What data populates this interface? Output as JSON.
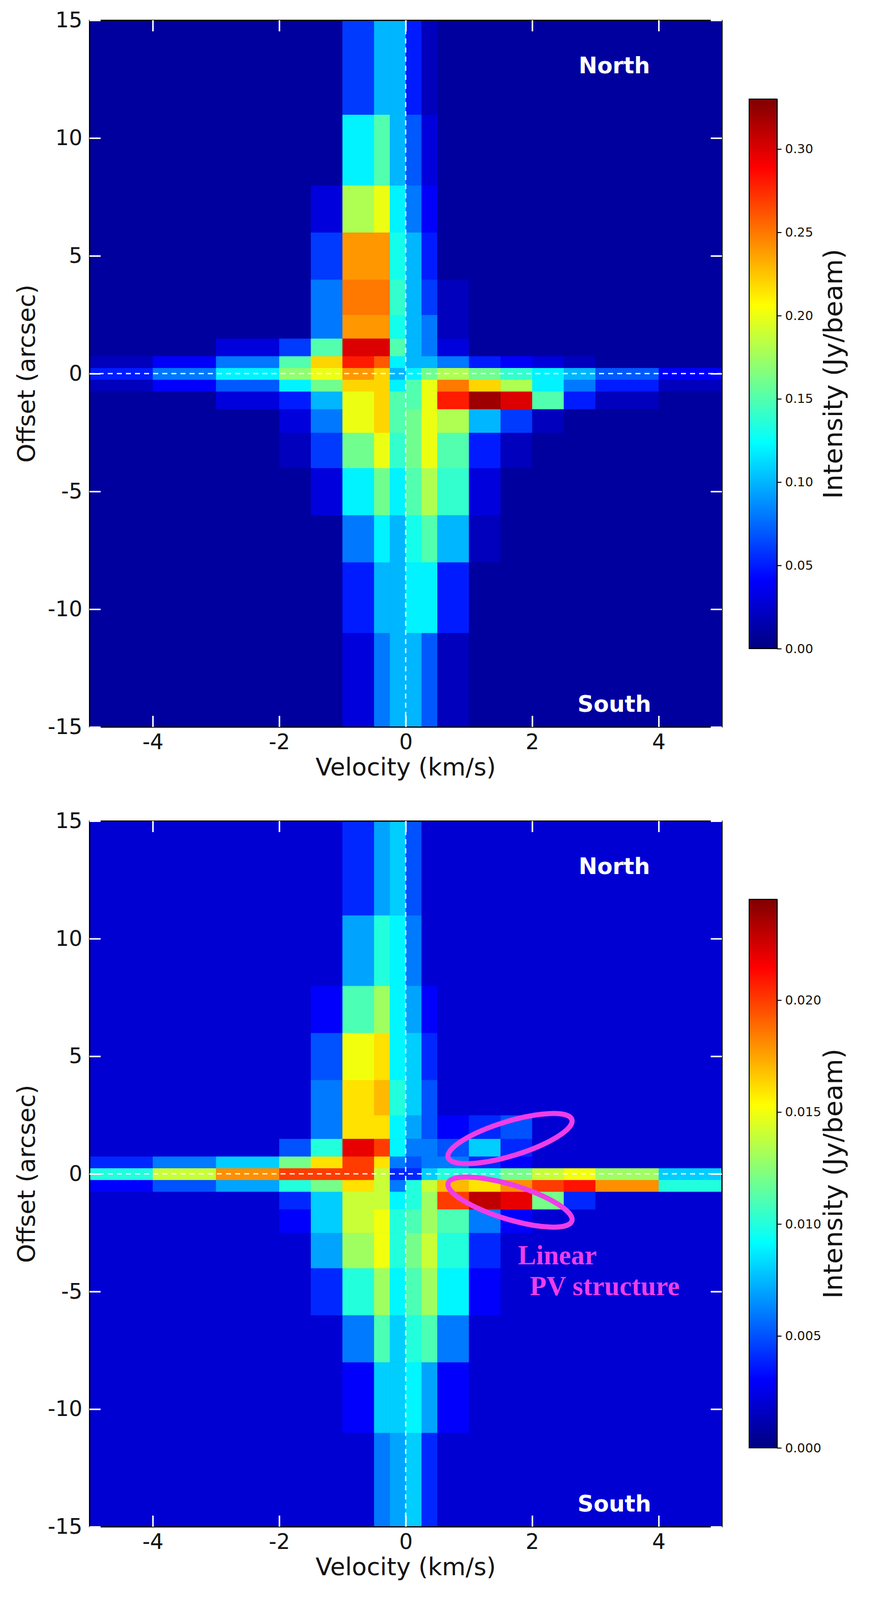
{
  "chart_data": [
    {
      "type": "heatmap",
      "xlabel": "Velocity (km/s)",
      "ylabel": "Offset (arcsec)",
      "xlim": [
        -5,
        5
      ],
      "ylim": [
        -15,
        15
      ],
      "xticks": [
        -4,
        -2,
        0,
        2,
        4
      ],
      "yticks": [
        -15,
        -10,
        -5,
        0,
        5,
        10,
        15
      ],
      "corner_labels": {
        "top": "North",
        "bottom": "South"
      },
      "reference_lines": {
        "x": 0,
        "y": 0
      },
      "x_edges": [
        -5,
        -4,
        -3,
        -2,
        -1.5,
        -1,
        -0.5,
        -0.25,
        0,
        0.25,
        0.5,
        1,
        1.5,
        2,
        2.5,
        3,
        4,
        5
      ],
      "y_edges": [
        -15,
        -11,
        -8,
        -6,
        -4,
        -2.5,
        -1.5,
        -0.75,
        -0.25,
        0.25,
        0.75,
        1.5,
        2.5,
        4,
        6,
        8,
        11,
        15
      ],
      "cells": [
        [
          0.01,
          0.01,
          0.01,
          0.01,
          0.01,
          0.03,
          0.08,
          0.1,
          0.1,
          0.07,
          0.02,
          0.01,
          0.01,
          0.01,
          0.01,
          0.01,
          0.01
        ],
        [
          0.01,
          0.01,
          0.01,
          0.01,
          0.01,
          0.05,
          0.1,
          0.1,
          0.12,
          0.12,
          0.05,
          0.01,
          0.01,
          0.01,
          0.01,
          0.01,
          0.01
        ],
        [
          0.01,
          0.01,
          0.01,
          0.01,
          0.01,
          0.08,
          0.12,
          0.1,
          0.13,
          0.15,
          0.1,
          0.02,
          0.01,
          0.01,
          0.01,
          0.01,
          0.01
        ],
        [
          0.01,
          0.01,
          0.01,
          0.01,
          0.03,
          0.12,
          0.16,
          0.12,
          0.15,
          0.18,
          0.14,
          0.03,
          0.01,
          0.01,
          0.01,
          0.01,
          0.01
        ],
        [
          0.01,
          0.01,
          0.01,
          0.02,
          0.06,
          0.16,
          0.2,
          0.14,
          0.16,
          0.2,
          0.15,
          0.05,
          0.02,
          0.01,
          0.01,
          0.01,
          0.01
        ],
        [
          0.01,
          0.01,
          0.01,
          0.03,
          0.08,
          0.2,
          0.22,
          0.15,
          0.16,
          0.2,
          0.18,
          0.1,
          0.06,
          0.02,
          0.01,
          0.01,
          0.01
        ],
        [
          0.01,
          0.01,
          0.03,
          0.05,
          0.1,
          0.2,
          0.22,
          0.15,
          0.15,
          0.2,
          0.28,
          0.32,
          0.3,
          0.15,
          0.05,
          0.02,
          0.01
        ],
        [
          0.02,
          0.04,
          0.07,
          0.12,
          0.16,
          0.22,
          0.22,
          0.12,
          0.15,
          0.2,
          0.25,
          0.22,
          0.18,
          0.12,
          0.08,
          0.05,
          0.02
        ],
        [
          0.05,
          0.08,
          0.12,
          0.17,
          0.2,
          0.24,
          0.22,
          0.1,
          0.12,
          0.16,
          0.18,
          0.16,
          0.14,
          0.12,
          0.1,
          0.07,
          0.04
        ],
        [
          0.02,
          0.04,
          0.08,
          0.15,
          0.22,
          0.28,
          0.26,
          0.12,
          0.1,
          0.1,
          0.08,
          0.05,
          0.04,
          0.03,
          0.02,
          0.01,
          0.01
        ],
        [
          0.01,
          0.01,
          0.03,
          0.06,
          0.15,
          0.3,
          0.3,
          0.15,
          0.1,
          0.08,
          0.03,
          0.01,
          0.01,
          0.01,
          0.01,
          0.01,
          0.01
        ],
        [
          0.01,
          0.01,
          0.01,
          0.01,
          0.08,
          0.24,
          0.24,
          0.13,
          0.1,
          0.08,
          0.02,
          0.01,
          0.01,
          0.01,
          0.01,
          0.01,
          0.01
        ],
        [
          0.01,
          0.01,
          0.01,
          0.01,
          0.08,
          0.25,
          0.25,
          0.14,
          0.1,
          0.06,
          0.02,
          0.01,
          0.01,
          0.01,
          0.01,
          0.01,
          0.01
        ],
        [
          0.01,
          0.01,
          0.01,
          0.01,
          0.06,
          0.24,
          0.24,
          0.13,
          0.1,
          0.05,
          0.01,
          0.01,
          0.01,
          0.01,
          0.01,
          0.01,
          0.01
        ],
        [
          0.01,
          0.01,
          0.01,
          0.01,
          0.03,
          0.18,
          0.2,
          0.12,
          0.08,
          0.04,
          0.01,
          0.01,
          0.01,
          0.01,
          0.01,
          0.01,
          0.01
        ],
        [
          0.01,
          0.01,
          0.01,
          0.01,
          0.01,
          0.12,
          0.15,
          0.1,
          0.07,
          0.03,
          0.01,
          0.01,
          0.01,
          0.01,
          0.01,
          0.01,
          0.01
        ],
        [
          0.01,
          0.01,
          0.01,
          0.01,
          0.01,
          0.06,
          0.1,
          0.1,
          0.05,
          0.02,
          0.01,
          0.01,
          0.01,
          0.01,
          0.01,
          0.01,
          0.01
        ]
      ],
      "colorbar": {
        "label": "Intensity (Jy/beam)",
        "range": [
          0,
          0.33
        ],
        "ticks": [
          {
            "value": 0,
            "label": "0.00"
          },
          {
            "value": 0.05,
            "label": "0.05"
          },
          {
            "value": 0.1,
            "label": "0.10"
          },
          {
            "value": 0.15,
            "label": "0.15"
          },
          {
            "value": 0.2,
            "label": "0.20"
          },
          {
            "value": 0.25,
            "label": "0.25"
          },
          {
            "value": 0.3,
            "label": "0.30"
          }
        ]
      }
    },
    {
      "type": "heatmap",
      "xlabel": "Velocity (km/s)",
      "ylabel": "Offset (arcsec)",
      "xlim": [
        -5,
        5
      ],
      "ylim": [
        -15,
        15
      ],
      "xticks": [
        -4,
        -2,
        0,
        2,
        4
      ],
      "yticks": [
        -15,
        -10,
        -5,
        0,
        5,
        10,
        15
      ],
      "corner_labels": {
        "top": "North",
        "bottom": "South"
      },
      "reference_lines": {
        "x": 0,
        "y": 0
      },
      "highlight": {
        "color": "#ee3ee8",
        "label": [
          "Linear",
          "PV structure"
        ]
      },
      "x_edges": [
        -5,
        -4,
        -3,
        -2,
        -1.5,
        -1,
        -0.5,
        -0.25,
        0,
        0.25,
        0.5,
        1,
        1.5,
        2,
        2.5,
        3,
        4,
        5
      ],
      "y_edges": [
        -15,
        -11,
        -8,
        -6,
        -4,
        -2.5,
        -1.5,
        -0.75,
        -0.25,
        0.25,
        0.75,
        1.5,
        2.5,
        4,
        6,
        8,
        11,
        15
      ],
      "cells": [
        [
          0.002,
          0.002,
          0.002,
          0.002,
          0.002,
          0.002,
          0.006,
          0.007,
          0.008,
          0.004,
          0.002,
          0.002,
          0.002,
          0.002,
          0.002,
          0.002,
          0.002
        ],
        [
          0.002,
          0.002,
          0.002,
          0.002,
          0.002,
          0.003,
          0.008,
          0.008,
          0.009,
          0.007,
          0.003,
          0.002,
          0.002,
          0.002,
          0.002,
          0.002,
          0.002
        ],
        [
          0.002,
          0.002,
          0.002,
          0.002,
          0.002,
          0.006,
          0.011,
          0.008,
          0.01,
          0.011,
          0.006,
          0.002,
          0.002,
          0.002,
          0.002,
          0.002,
          0.002
        ],
        [
          0.002,
          0.002,
          0.002,
          0.002,
          0.004,
          0.01,
          0.013,
          0.009,
          0.011,
          0.013,
          0.009,
          0.003,
          0.002,
          0.002,
          0.002,
          0.002,
          0.002
        ],
        [
          0.002,
          0.002,
          0.002,
          0.002,
          0.007,
          0.013,
          0.015,
          0.01,
          0.012,
          0.014,
          0.01,
          0.004,
          0.002,
          0.002,
          0.002,
          0.002,
          0.002
        ],
        [
          0.002,
          0.002,
          0.002,
          0.003,
          0.008,
          0.014,
          0.015,
          0.01,
          0.011,
          0.013,
          0.011,
          0.006,
          0.003,
          0.002,
          0.002,
          0.002,
          0.002
        ],
        [
          0.002,
          0.002,
          0.002,
          0.004,
          0.008,
          0.014,
          0.014,
          0.009,
          0.01,
          0.013,
          0.02,
          0.023,
          0.022,
          0.012,
          0.004,
          0.002,
          0.002
        ],
        [
          0.003,
          0.005,
          0.007,
          0.01,
          0.012,
          0.016,
          0.014,
          0.006,
          0.01,
          0.014,
          0.017,
          0.016,
          0.018,
          0.02,
          0.021,
          0.018,
          0.01
        ],
        [
          0.01,
          0.014,
          0.018,
          0.02,
          0.02,
          0.02,
          0.014,
          0.004,
          0.004,
          0.008,
          0.01,
          0.01,
          0.012,
          0.014,
          0.015,
          0.013,
          0.008
        ],
        [
          0.004,
          0.006,
          0.008,
          0.012,
          0.016,
          0.02,
          0.016,
          0.006,
          0.005,
          0.006,
          0.006,
          0.004,
          0.003,
          0.002,
          0.002,
          0.002,
          0.002
        ],
        [
          0.002,
          0.002,
          0.002,
          0.005,
          0.01,
          0.022,
          0.02,
          0.009,
          0.006,
          0.006,
          0.005,
          0.008,
          0.004,
          0.002,
          0.002,
          0.002,
          0.002
        ],
        [
          0.002,
          0.002,
          0.002,
          0.002,
          0.006,
          0.016,
          0.016,
          0.009,
          0.007,
          0.005,
          0.003,
          0.004,
          0.005,
          0.002,
          0.002,
          0.002,
          0.002
        ],
        [
          0.002,
          0.002,
          0.002,
          0.002,
          0.006,
          0.016,
          0.017,
          0.01,
          0.008,
          0.005,
          0.002,
          0.002,
          0.002,
          0.002,
          0.002,
          0.002,
          0.002
        ],
        [
          0.002,
          0.002,
          0.002,
          0.002,
          0.005,
          0.015,
          0.016,
          0.009,
          0.008,
          0.004,
          0.002,
          0.002,
          0.002,
          0.002,
          0.002,
          0.002,
          0.002
        ],
        [
          0.002,
          0.002,
          0.002,
          0.002,
          0.003,
          0.011,
          0.013,
          0.009,
          0.007,
          0.003,
          0.002,
          0.002,
          0.002,
          0.002,
          0.002,
          0.002,
          0.002
        ],
        [
          0.002,
          0.002,
          0.002,
          0.002,
          0.002,
          0.007,
          0.01,
          0.009,
          0.006,
          0.002,
          0.002,
          0.002,
          0.002,
          0.002,
          0.002,
          0.002,
          0.002
        ],
        [
          0.002,
          0.002,
          0.002,
          0.002,
          0.002,
          0.004,
          0.007,
          0.008,
          0.005,
          0.002,
          0.002,
          0.002,
          0.002,
          0.002,
          0.002,
          0.002,
          0.002
        ]
      ],
      "colorbar": {
        "label": "Intensity (Jy/beam)",
        "range": [
          0,
          0.0245
        ],
        "ticks": [
          {
            "value": 0,
            "label": "0.000"
          },
          {
            "value": 0.005,
            "label": "0.005"
          },
          {
            "value": 0.01,
            "label": "0.010"
          },
          {
            "value": 0.015,
            "label": "0.015"
          },
          {
            "value": 0.02,
            "label": "0.020"
          }
        ]
      }
    }
  ]
}
